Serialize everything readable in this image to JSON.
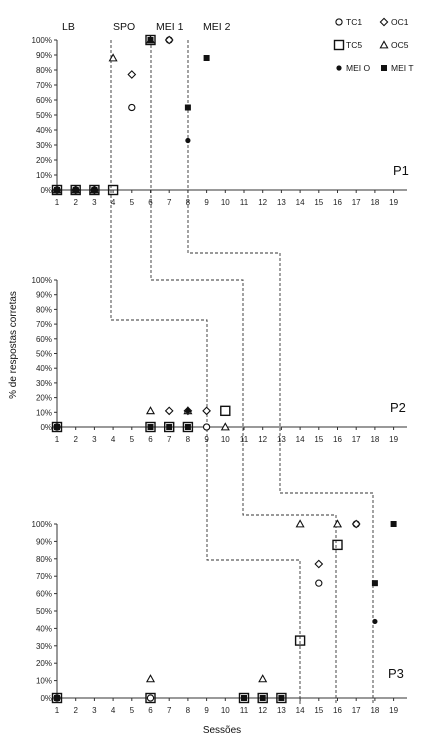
{
  "chart_data": {
    "type": "scatter",
    "xlabel": "Sessões",
    "ylabel": "% de respostas corretas",
    "x_categories": [
      "1",
      "2",
      "3",
      "4",
      "5",
      "6",
      "7",
      "8",
      "9",
      "10",
      "11",
      "12",
      "13",
      "14",
      "15",
      "16",
      "17",
      "18",
      "19"
    ],
    "y_ticks": [
      "0%",
      "10%",
      "20%",
      "30%",
      "40%",
      "50%",
      "60%",
      "70%",
      "80%",
      "90%",
      "100%"
    ],
    "ylim": [
      0,
      100
    ],
    "phase_labels": [
      "LB",
      "SPO",
      "MEI 1",
      "MEI 2"
    ],
    "legend": [
      {
        "name": "TC1",
        "marker": "circle-open"
      },
      {
        "name": "OC1",
        "marker": "diamond-open"
      },
      {
        "name": "TC5",
        "marker": "square-open"
      },
      {
        "name": "OC5",
        "marker": "triangle-open"
      },
      {
        "name": "MEI O",
        "marker": "circle-filled"
      },
      {
        "name": "MEI T",
        "marker": "square-filled"
      }
    ],
    "panels": [
      {
        "participant": "P1",
        "series": [
          {
            "name": "TC1",
            "points": [
              [
                1,
                0
              ],
              [
                2,
                0
              ],
              [
                3,
                0
              ],
              [
                5,
                55
              ],
              [
                7,
                100
              ]
            ]
          },
          {
            "name": "OC1",
            "points": [
              [
                1,
                0
              ],
              [
                2,
                0
              ],
              [
                3,
                0
              ],
              [
                5,
                77
              ],
              [
                7,
                100
              ]
            ]
          },
          {
            "name": "TC5",
            "points": [
              [
                1,
                0
              ],
              [
                2,
                0
              ],
              [
                3,
                0
              ],
              [
                4,
                0
              ],
              [
                6,
                100
              ]
            ]
          },
          {
            "name": "OC5",
            "points": [
              [
                1,
                0
              ],
              [
                2,
                0
              ],
              [
                3,
                0
              ],
              [
                4,
                88
              ],
              [
                6,
                100
              ]
            ]
          },
          {
            "name": "MEI O",
            "points": [
              [
                8,
                33
              ]
            ]
          },
          {
            "name": "MEI T",
            "points": [
              [
                1,
                0
              ],
              [
                2,
                0
              ],
              [
                3,
                0
              ],
              [
                6,
                100
              ],
              [
                8,
                55
              ],
              [
                9,
                88
              ]
            ]
          }
        ]
      },
      {
        "participant": "P2",
        "series": [
          {
            "name": "TC1",
            "points": [
              [
                1,
                0
              ],
              [
                9,
                0
              ]
            ]
          },
          {
            "name": "OC1",
            "points": [
              [
                7,
                11
              ],
              [
                8,
                11
              ],
              [
                9,
                11
              ]
            ]
          },
          {
            "name": "TC5",
            "points": [
              [
                1,
                0
              ],
              [
                6,
                0
              ],
              [
                7,
                0
              ],
              [
                8,
                0
              ],
              [
                10,
                11
              ]
            ]
          },
          {
            "name": "OC5",
            "points": [
              [
                6,
                11
              ],
              [
                8,
                11
              ],
              [
                10,
                0
              ]
            ]
          },
          {
            "name": "MEI O",
            "points": [
              [
                8,
                11
              ]
            ]
          },
          {
            "name": "MEI T",
            "points": [
              [
                1,
                0
              ],
              [
                6,
                0
              ],
              [
                7,
                0
              ],
              [
                8,
                0
              ]
            ]
          }
        ]
      },
      {
        "participant": "P3",
        "series": [
          {
            "name": "TC1",
            "points": [
              [
                1,
                0
              ],
              [
                6,
                0
              ],
              [
                15,
                66
              ],
              [
                17,
                100
              ]
            ]
          },
          {
            "name": "OC1",
            "points": [
              [
                15,
                77
              ],
              [
                17,
                100
              ]
            ]
          },
          {
            "name": "TC5",
            "points": [
              [
                1,
                0
              ],
              [
                6,
                0
              ],
              [
                11,
                0
              ],
              [
                12,
                0
              ],
              [
                13,
                0
              ],
              [
                14,
                33
              ],
              [
                16,
                88
              ]
            ]
          },
          {
            "name": "OC5",
            "points": [
              [
                6,
                11
              ],
              [
                12,
                11
              ],
              [
                14,
                100
              ],
              [
                16,
                100
              ]
            ]
          },
          {
            "name": "MEI O",
            "points": [
              [
                18,
                44
              ]
            ]
          },
          {
            "name": "MEI T",
            "points": [
              [
                1,
                0
              ],
              [
                11,
                0
              ],
              [
                12,
                0
              ],
              [
                13,
                0
              ],
              [
                18,
                66
              ],
              [
                19,
                100
              ]
            ]
          }
        ]
      }
    ]
  }
}
